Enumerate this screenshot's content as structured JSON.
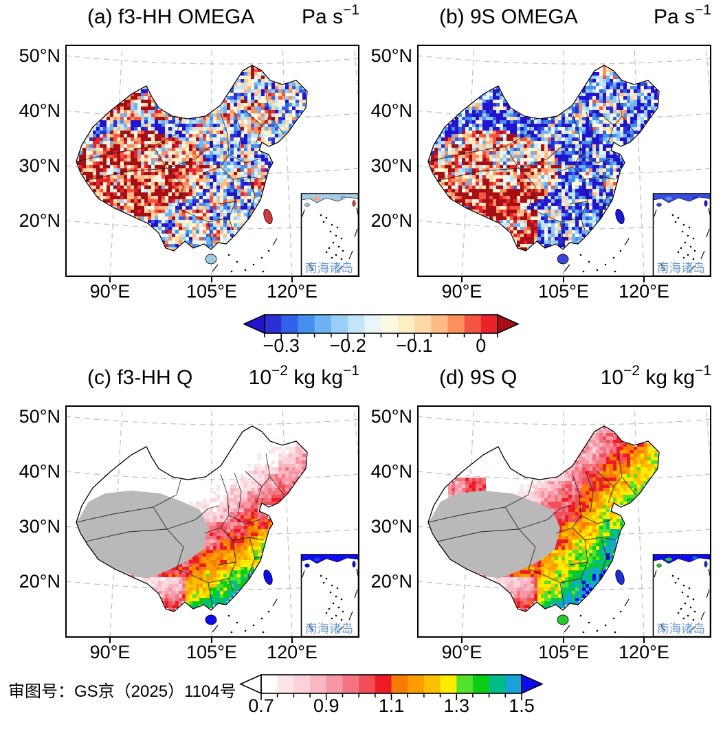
{
  "figure": {
    "background": "#ffffff",
    "approval_note": "审图号：GS京（2025）1104号",
    "inset": {
      "label": "南海诸岛",
      "label_color": "#6c9bd0"
    }
  },
  "axes": {
    "x_ticks": [
      "90°E",
      "105°E",
      "120°E"
    ],
    "y_ticks": [
      "50°N",
      "40°N",
      "30°N",
      "20°N"
    ]
  },
  "chart_data": {
    "type": "heatmap",
    "projection": "Lambert conformal over China, dashed gray graticule",
    "panels": [
      {
        "id": "a",
        "title": "(a) f3-HH OMEGA",
        "unit_parts": [
          {
            "text": "Pa s"
          },
          {
            "sup": "−1"
          }
        ],
        "variable": "OMEGA (vertical pressure velocity)",
        "dataset": "f3-HH",
        "colorbar": "omega",
        "pattern": "speckle",
        "bias": {
          "plateau": 0.6,
          "himalaya": 0.72,
          "tianshan": 0.45,
          "tarim": -0.45,
          "default": -0.13
        },
        "taiwan": "#d43c3c",
        "hainan": "#9ecae1",
        "inset_coast": [
          "#a6cee3",
          "#f4a582",
          "#74add1"
        ],
        "pattern_description": "Noisy ascent/descent speckle; strong positive (red) OMEGA banding over the Tibetan Plateau and Tianshan, mixed blue-dominated speckle over eastern and northwestern China."
      },
      {
        "id": "b",
        "title": "(b) 9S OMEGA",
        "unit_parts": [
          {
            "text": "Pa s"
          },
          {
            "sup": "−1"
          }
        ],
        "variable": "OMEGA (vertical pressure velocity)",
        "dataset": "9S",
        "colorbar": "omega",
        "pattern": "speckle",
        "bias": {
          "plateau": 0.38,
          "himalaya": 0.95,
          "tianshan": -0.6,
          "tarim": -0.8,
          "yunnan": 0.65,
          "default": -0.5
        },
        "taiwan": "#1a1ad8",
        "hainan": "#3a46d8",
        "inset_coast": [
          "#3550e0",
          "#5a8ff0",
          "#2a35d8"
        ],
        "pattern_description": "Mostly negative (blue) OMEGA nationwide, dark blue over the Tarim Basin; strong positive (dark red) band along the Himalayan rim and western Yunnan, orange-red over the Tibetan Plateau."
      },
      {
        "id": "c",
        "title": "(c) f3-HH Q",
        "unit_parts": [
          {
            "text": "10"
          },
          {
            "sup": "−2"
          },
          {
            "text": " kg kg"
          },
          {
            "sup": "−1"
          }
        ],
        "variable": "Q (specific humidity)",
        "dataset": "f3-HH",
        "colorbar": "q",
        "pattern": "gradient",
        "model": {
          "alpha": -0.475,
          "beta": 0.00425,
          "gamma": 0.003,
          "noise": 0.06,
          "blob": 0.4
        },
        "gray_mask": true,
        "taiwan": "#0d0cf0",
        "hainan": "#0d0cf0",
        "inset_coast": [
          "#0d0cf0",
          "#2040f0",
          "#0d0cf0"
        ],
        "pattern_description": "Humidity increases from white/pink in the north and northeast through red and orange over the North China Plain, yellow-green over central China, to deep blue along the south coast and Hainan; Tibetan Plateau masked gray."
      },
      {
        "id": "d",
        "title": "(d) 9S Q",
        "unit_parts": [
          {
            "text": "10"
          },
          {
            "sup": "−2"
          },
          {
            "text": " kg kg"
          },
          {
            "sup": "−1"
          }
        ],
        "variable": "Q (specific humidity)",
        "dataset": "9S",
        "colorbar": "q",
        "pattern": "gradient",
        "model": {
          "alpha": -0.1525,
          "beta": 0.002875,
          "gamma": 0.0035,
          "noise": 0.06,
          "blob": 0.55
        },
        "gray_mask": true,
        "taiwan": "#1b2fd8",
        "hainan": "#28c828",
        "inset_coast": [
          "#0d0cf0",
          "#28c828",
          "#1560e8"
        ],
        "pattern_description": "Wetter than panel (c): red covers the whole northeast, yellow-green over north-central China, green-teal over the east, deep blue across the south; green Hainan; Tibetan Plateau masked gray."
      }
    ],
    "gray_mask_color": "#b9b9b9",
    "colorbars": [
      {
        "id": "omega",
        "orientation": "horizontal",
        "tick_labels": [
          "−0.3",
          "−0.2",
          "−0.1",
          "0"
        ],
        "tick_values": [
          -0.3,
          -0.2,
          -0.1,
          0
        ],
        "range": [
          -0.325,
          0.025
        ],
        "minor_step": 0.025,
        "under_arrow": "#2413ce",
        "over_arrow": "#a50f15",
        "segments": [
          "#2b2fd4",
          "#3061e6",
          "#4590ee",
          "#6db3f3",
          "#99cff7",
          "#c3e5f9",
          "#e8f5fb",
          "#fdf9e0",
          "#fdeec4",
          "#fdd9a7",
          "#fdbb85",
          "#fb8f5e",
          "#f45541",
          "#e9222b"
        ]
      },
      {
        "id": "q",
        "orientation": "horizontal",
        "tick_labels": [
          "0.7",
          "0.9",
          "1.1",
          "1.3",
          "1.5"
        ],
        "tick_values": [
          0.7,
          0.9,
          1.1,
          1.3,
          1.5
        ],
        "range": [
          0.7,
          1.5
        ],
        "minor_step": 0.05,
        "under_arrow": "#ffffff",
        "over_arrow": "#0d0cf0",
        "segments": [
          "#ffffff",
          "#fce4e7",
          "#fbd2d9",
          "#f9b7c2",
          "#f697a6",
          "#f47481",
          "#f24e57",
          "#ee1b24",
          "#f87c04",
          "#fb9c00",
          "#fdc000",
          "#fdec00",
          "#55e22c",
          "#0ccd15",
          "#00bd87",
          "#18a2d8"
        ]
      }
    ]
  }
}
